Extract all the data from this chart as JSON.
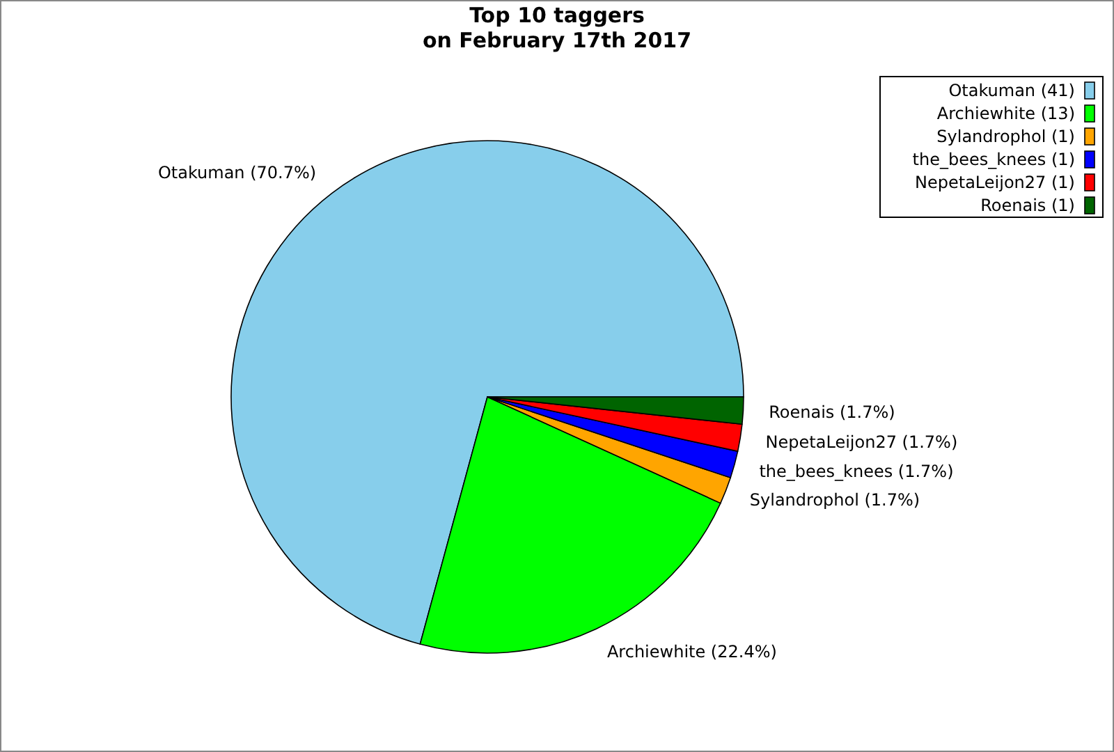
{
  "chart_data": {
    "type": "pie",
    "title": "Top 10 taggers\non February 17th 2017",
    "categories": [
      "Otakuman (41)",
      "Archiewhite (13)",
      "Sylandrophol (1)",
      "the_bees_knees (1)",
      "NepetaLeijon27 (1)",
      "Roenais (1)"
    ],
    "values": [
      70.7,
      22.4,
      1.7,
      1.7,
      1.7,
      1.7
    ],
    "value_labels": [
      "Otakuman (70.7%)",
      "Archiewhite (22.4%)",
      "Sylandrophol (1.7%)",
      "the_bees_knees (1.7%)",
      "NepetaLeijon27 (1.7%)",
      "Roenais (1.7%)"
    ],
    "colors": [
      "#87ceeb",
      "#00ff00",
      "#ffa500",
      "#0000ff",
      "#ff0000",
      "#006400"
    ],
    "legend": "top right"
  }
}
